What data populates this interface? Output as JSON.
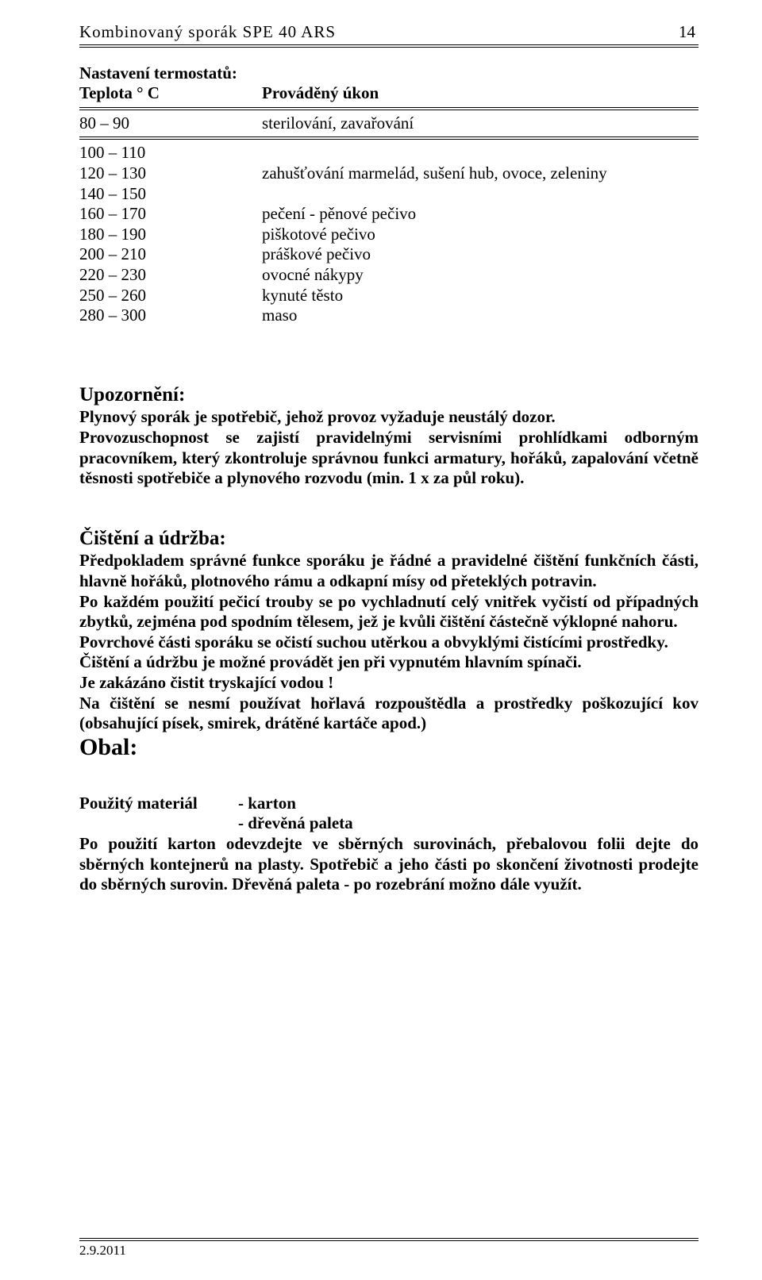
{
  "header": {
    "product": "Kombinovaný  sporák  SPE 40 ARS",
    "page_number": "14"
  },
  "thermostat": {
    "title": "Nastavení termostatů:",
    "col_temp": "Teplota ° C",
    "col_task": "Prováděný úkon",
    "row_first": {
      "temp": "80 – 90",
      "task": "sterilování, zavařování"
    },
    "rows": [
      {
        "temp": "100 – 110",
        "task": ""
      },
      {
        "temp": "120 – 130",
        "task": "zahušťování marmelád, sušení  hub, ovoce, zeleniny"
      },
      {
        "temp": "140 – 150",
        "task": ""
      },
      {
        "temp": "160 – 170",
        "task": "pečení - pěnové pečivo"
      },
      {
        "temp": "180 – 190",
        "task": "piškotové pečivo"
      },
      {
        "temp": "200 – 210",
        "task": "práškové pečivo"
      },
      {
        "temp": "220 – 230",
        "task": "ovocné nákypy"
      },
      {
        "temp": "250 – 260",
        "task": "kynuté těsto"
      },
      {
        "temp": "280 – 300",
        "task": "maso"
      }
    ]
  },
  "warning": {
    "title": "Upozornění:",
    "p1": "Plynový sporák je spotřebič, jehož provoz vyžaduje neustálý dozor.",
    "p2": "Provozuschopnost se zajistí pravidelnými servisními  prohlídkami odborným pracovníkem, který zkontroluje správnou funkci armatury, hořáků, zapalování včetně těsnosti spotřebiče a plynového rozvodu (min. 1 x za půl roku)."
  },
  "cleaning": {
    "title": "Čištění a údržba:",
    "p1": "Předpokladem správné funkce sporáku je řádné a pravidelné čištění funkčních části, hlavně hořáků, plotnového rámu a odkapní mísy od přeteklých potravin.",
    "p2": "Po každém použití pečicí trouby se po vychladnutí celý vnitřek vyčistí od případných zbytků, zejména pod spodním tělesem, jež je kvůli čištění částečně výklopné nahoru.",
    "p3": "Povrchové části sporáku se očistí suchou utěrkou a obvyklými čistícími prostředky.",
    "p4": "Čištění a údržbu je možné provádět jen při vypnutém hlavním spínači.",
    "p5": "Je zakázáno čistit tryskající vodou !",
    "p6": "Na čištění se nesmí používat hořlavá rozpouštědla a prostředky poškozující kov (obsahující písek, smirek, drátěné kartáče apod.)"
  },
  "packaging": {
    "title": "Obal:",
    "material_label": "Použitý materiál",
    "material_1": "- karton",
    "material_2": "- dřevěná paleta",
    "p1": "Po použití karton odevzdejte ve sběrných surovinách, přebalovou folii dejte do sběrných kontejnerů na plasty.  Spotřebič a jeho části po skončení životnosti prodejte do sběrných surovin.  Dřevěná paleta - po rozebrání možno dále využít."
  },
  "footer": {
    "date": "2.9.2011"
  }
}
